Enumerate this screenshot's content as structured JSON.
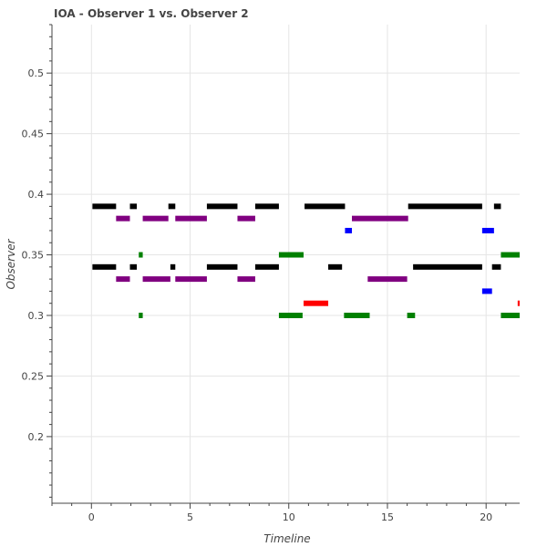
{
  "chart_data": {
    "type": "bar",
    "title": "IOA - Observer 1 vs. Observer 2",
    "xlabel": "Timeline",
    "ylabel": "Observer",
    "xlim": [
      -2,
      21.7
    ],
    "ylim": [
      0.145,
      0.54
    ],
    "x_ticks": [
      0,
      5,
      10,
      15,
      20
    ],
    "y_ticks": [
      0.2,
      0.25,
      0.3,
      0.35,
      0.4,
      0.45,
      0.5
    ],
    "grid": true,
    "series": [
      {
        "color": "#000000",
        "segments": [
          {
            "y": 0.39,
            "x0": 0.05,
            "x1": 1.25
          },
          {
            "y": 0.39,
            "x0": 1.95,
            "x1": 2.3
          },
          {
            "y": 0.39,
            "x0": 3.9,
            "x1": 4.25
          },
          {
            "y": 0.39,
            "x0": 5.85,
            "x1": 7.4
          },
          {
            "y": 0.39,
            "x0": 8.3,
            "x1": 9.5
          },
          {
            "y": 0.39,
            "x0": 10.8,
            "x1": 12.85
          },
          {
            "y": 0.39,
            "x0": 16.05,
            "x1": 19.8
          },
          {
            "y": 0.39,
            "x0": 20.4,
            "x1": 20.75
          },
          {
            "y": 0.34,
            "x0": 0.05,
            "x1": 1.25
          },
          {
            "y": 0.34,
            "x0": 1.95,
            "x1": 2.3
          },
          {
            "y": 0.34,
            "x0": 4.0,
            "x1": 4.25
          },
          {
            "y": 0.34,
            "x0": 5.85,
            "x1": 7.4
          },
          {
            "y": 0.34,
            "x0": 8.3,
            "x1": 9.5
          },
          {
            "y": 0.34,
            "x0": 12.0,
            "x1": 12.7
          },
          {
            "y": 0.34,
            "x0": 16.3,
            "x1": 19.8
          },
          {
            "y": 0.34,
            "x0": 20.3,
            "x1": 20.75
          }
        ]
      },
      {
        "color": "#800080",
        "segments": [
          {
            "y": 0.38,
            "x0": 1.25,
            "x1": 1.95
          },
          {
            "y": 0.38,
            "x0": 2.6,
            "x1": 3.9
          },
          {
            "y": 0.38,
            "x0": 4.25,
            "x1": 5.85
          },
          {
            "y": 0.38,
            "x0": 7.4,
            "x1": 8.3
          },
          {
            "y": 0.38,
            "x0": 13.2,
            "x1": 16.05
          },
          {
            "y": 0.33,
            "x0": 1.25,
            "x1": 1.95
          },
          {
            "y": 0.33,
            "x0": 2.6,
            "x1": 4.0
          },
          {
            "y": 0.33,
            "x0": 4.25,
            "x1": 5.85
          },
          {
            "y": 0.33,
            "x0": 7.4,
            "x1": 8.3
          },
          {
            "y": 0.33,
            "x0": 14.0,
            "x1": 16.0
          }
        ]
      },
      {
        "color": "#008000",
        "segments": [
          {
            "y": 0.35,
            "x0": 2.4,
            "x1": 2.6
          },
          {
            "y": 0.35,
            "x0": 9.5,
            "x1": 10.75
          },
          {
            "y": 0.35,
            "x0": 20.75,
            "x1": 21.7
          },
          {
            "y": 0.3,
            "x0": 2.4,
            "x1": 2.6
          },
          {
            "y": 0.3,
            "x0": 9.5,
            "x1": 10.7
          },
          {
            "y": 0.3,
            "x0": 12.8,
            "x1": 14.1
          },
          {
            "y": 0.3,
            "x0": 16.0,
            "x1": 16.4
          },
          {
            "y": 0.3,
            "x0": 20.75,
            "x1": 21.7
          }
        ]
      },
      {
        "color": "#0000ff",
        "segments": [
          {
            "y": 0.37,
            "x0": 12.85,
            "x1": 13.2
          },
          {
            "y": 0.37,
            "x0": 19.8,
            "x1": 20.4
          },
          {
            "y": 0.32,
            "x0": 19.8,
            "x1": 20.3
          }
        ]
      },
      {
        "color": "#ff0000",
        "segments": [
          {
            "y": 0.31,
            "x0": 10.75,
            "x1": 12.0
          },
          {
            "y": 0.31,
            "x0": 21.6,
            "x1": 21.7
          }
        ]
      }
    ]
  }
}
